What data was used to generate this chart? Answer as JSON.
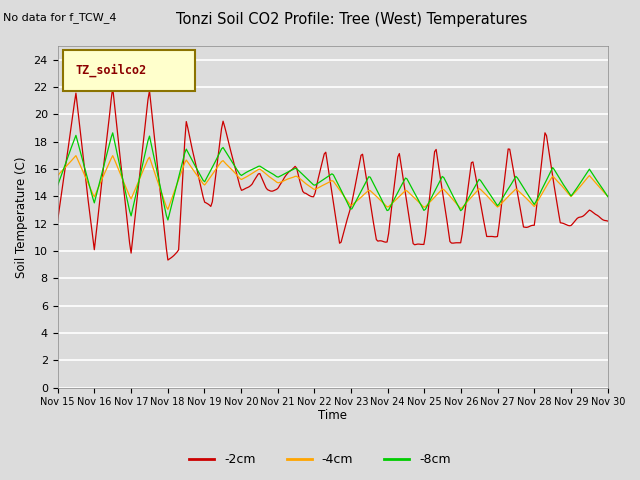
{
  "title": "Tonzi Soil CO2 Profile: Tree (West) Temperatures",
  "top_left_text": "No data for f_TCW_4",
  "ylabel": "Soil Temperature (C)",
  "xlabel": "Time",
  "ylim": [
    0,
    25
  ],
  "yticks": [
    0,
    2,
    4,
    6,
    8,
    10,
    12,
    14,
    16,
    18,
    20,
    22,
    24
  ],
  "bg_color": "#dcdcdc",
  "legend_label": "TZ_soilco2",
  "legend_bg": "#ffffcc",
  "legend_border": "#8b7300",
  "color_2cm": "#cc0000",
  "color_4cm": "#ffa500",
  "color_8cm": "#00cc00",
  "xtick_labels": [
    "Nov 15",
    "Nov 16",
    "Nov 17",
    "Nov 18",
    "Nov 19",
    "Nov 20",
    "Nov 21",
    "Nov 22",
    "Nov 23",
    "Nov 24",
    "Nov 25",
    "Nov 26",
    "Nov 27",
    "Nov 28",
    "Nov 29",
    "Nov 30"
  ]
}
